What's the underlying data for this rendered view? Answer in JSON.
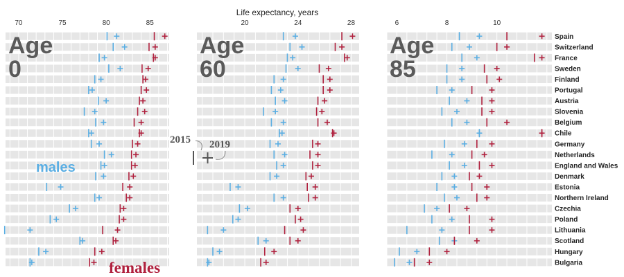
{
  "title": "Life expectancy, years",
  "legend": {
    "year_start": "2015",
    "year_end": "2019",
    "males": "males",
    "females": "females"
  },
  "colors": {
    "males": "#5aaee3",
    "females": "#b0213e",
    "band": "#e6e6e6",
    "grid": "#ffffff",
    "age_text": "#5a5a5a"
  },
  "countries": [
    "Spain",
    "Switzerland",
    "France",
    "Sweden",
    "Finland",
    "Portugal",
    "Austria",
    "Slovenia",
    "Belgium",
    "Chile",
    "Germany",
    "Netherlands",
    "England and Wales",
    "Denmark",
    "Estonia",
    "Northern Ireland",
    "Czechia",
    "Poland",
    "Lithuania",
    "Scotland",
    "Hungary",
    "Bulgaria"
  ],
  "chart_data": [
    {
      "type": "dot",
      "panel_label": [
        "Age",
        "0"
      ],
      "xlim": [
        68.5,
        87.2
      ],
      "ticks": [
        70,
        75,
        80,
        85
      ],
      "grid": true,
      "series": [
        {
          "name": "males",
          "values_2015": [
            80.1,
            80.8,
            79.2,
            80.3,
            78.7,
            78.0,
            79.1,
            77.5,
            78.8,
            78.0,
            78.3,
            79.8,
            79.4,
            78.8,
            73.2,
            78.7,
            75.8,
            73.6,
            68.4,
            77.0,
            72.3,
            71.3
          ],
          "values_2019": [
            81.2,
            82.1,
            79.8,
            81.6,
            79.4,
            78.4,
            80.0,
            78.7,
            79.7,
            78.3,
            79.2,
            80.6,
            79.8,
            79.7,
            74.8,
            79.2,
            76.5,
            74.3,
            71.3,
            77.3,
            73.1,
            71.5
          ]
        },
        {
          "name": "females",
          "values_2015": [
            85.5,
            84.9,
            85.4,
            84.1,
            84.2,
            84.0,
            83.8,
            83.6,
            83.2,
            83.8,
            83.0,
            82.9,
            82.9,
            82.6,
            81.9,
            82.3,
            81.6,
            81.5,
            79.6,
            80.8,
            78.7,
            78.1
          ],
          "values_2019": [
            86.7,
            85.6,
            85.6,
            84.8,
            84.5,
            84.6,
            84.2,
            84.4,
            84.0,
            84.0,
            83.6,
            83.4,
            83.3,
            83.1,
            82.7,
            82.7,
            82.0,
            82.0,
            81.3,
            81.1,
            79.5,
            78.6
          ]
        }
      ]
    },
    {
      "type": "dot",
      "panel_label": [
        "Age",
        "60"
      ],
      "xlim": [
        16.4,
        28.6
      ],
      "ticks": [
        20,
        24,
        28
      ],
      "grid": true,
      "series": [
        {
          "name": "males",
          "values_2015": [
            22.9,
            23.4,
            23.2,
            23.1,
            22.2,
            22.0,
            22.3,
            21.4,
            22.0,
            22.6,
            21.9,
            22.2,
            22.4,
            21.9,
            18.9,
            22.2,
            19.6,
            19.1,
            17.2,
            21.0,
            17.6,
            17.2
          ],
          "values_2019": [
            23.8,
            24.3,
            23.6,
            24.0,
            22.9,
            22.7,
            23.0,
            22.3,
            22.9,
            22.8,
            22.5,
            23.0,
            22.9,
            22.4,
            19.5,
            22.9,
            20.2,
            19.5,
            18.4,
            21.6,
            18.1,
            17.3
          ]
        },
        {
          "name": "females",
          "values_2015": [
            27.3,
            26.8,
            27.5,
            25.6,
            25.9,
            25.9,
            25.5,
            25.4,
            25.5,
            26.6,
            25.1,
            24.9,
            25.1,
            24.6,
            24.7,
            24.8,
            23.4,
            23.8,
            23.0,
            23.4,
            21.5,
            21.2
          ],
          "values_2019": [
            28.1,
            27.3,
            27.7,
            26.3,
            26.4,
            26.4,
            26.0,
            25.8,
            26.2,
            26.7,
            25.5,
            25.5,
            25.5,
            25.0,
            25.3,
            25.3,
            24.0,
            24.2,
            24.4,
            24.0,
            22.2,
            21.6
          ]
        }
      ]
    },
    {
      "type": "dot",
      "panel_label": [
        "Age",
        "85"
      ],
      "xlim": [
        5.6,
        12.2
      ],
      "ticks": [
        6,
        8,
        10
      ],
      "grid": true,
      "series": [
        {
          "name": "males",
          "values_2015": [
            8.5,
            8.2,
            8.6,
            8.0,
            8.0,
            7.6,
            8.1,
            7.8,
            8.2,
            9.3,
            7.9,
            7.4,
            8.1,
            7.8,
            7.6,
            7.9,
            7.1,
            7.4,
            6.4,
            7.7,
            6.1,
            5.9
          ],
          "values_2019": [
            9.3,
            8.9,
            9.2,
            8.6,
            8.6,
            8.2,
            8.8,
            8.4,
            8.8,
            9.3,
            8.7,
            8.2,
            8.7,
            8.3,
            8.3,
            8.4,
            7.6,
            8.2,
            7.8,
            8.3,
            6.8,
            6.5
          ]
        },
        {
          "name": "females",
          "values_2015": [
            10.4,
            10.0,
            11.5,
            9.5,
            9.6,
            9.0,
            9.4,
            9.4,
            9.6,
            11.8,
            9.2,
            9.0,
            9.3,
            8.9,
            9.0,
            9.2,
            8.1,
            8.9,
            8.9,
            8.3,
            7.3,
            6.7
          ],
          "values_2019": [
            11.8,
            10.4,
            11.8,
            10.0,
            10.1,
            9.8,
            9.8,
            9.8,
            10.4,
            11.8,
            9.8,
            9.5,
            9.8,
            9.3,
            9.6,
            9.6,
            8.8,
            9.8,
            9.8,
            9.2,
            8.0,
            7.3
          ]
        }
      ]
    }
  ]
}
